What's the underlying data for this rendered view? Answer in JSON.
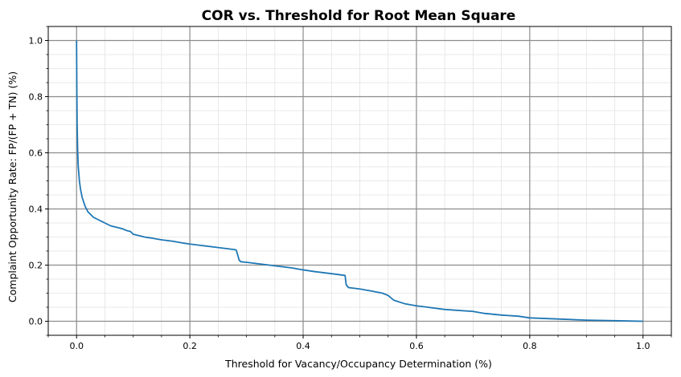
{
  "chart_data": {
    "type": "line",
    "title": "COR vs. Threshold for Root Mean Square",
    "xlabel": "Threshold for Vacancy/Occupancy Determination (%)",
    "ylabel": "Complaint Opportunity Rate: FP/(FP + TN) (%)",
    "xlim": [
      -0.05,
      1.05
    ],
    "ylim": [
      -0.05,
      1.05
    ],
    "x_ticks": [
      "0.0",
      "0.2",
      "0.4",
      "0.6",
      "0.8",
      "1.0"
    ],
    "y_ticks": [
      "0.0",
      "0.2",
      "0.4",
      "0.6",
      "0.8",
      "1.0"
    ],
    "x_tick_values": [
      0,
      0.2,
      0.4,
      0.6,
      0.8,
      1.0
    ],
    "y_tick_values": [
      0,
      0.2,
      0.4,
      0.6,
      0.8,
      1.0
    ],
    "grid": true,
    "minor_grid": true,
    "legend": "none",
    "series": [
      {
        "color": "#1f77b4",
        "x": [
          0.0,
          0.0005,
          0.001,
          0.002,
          0.003,
          0.005,
          0.007,
          0.01,
          0.015,
          0.02,
          0.025,
          0.03,
          0.04,
          0.05,
          0.06,
          0.07,
          0.08,
          0.09,
          0.095,
          0.1,
          0.11,
          0.12,
          0.13,
          0.15,
          0.17,
          0.19,
          0.2,
          0.22,
          0.24,
          0.26,
          0.28,
          0.282,
          0.285,
          0.287,
          0.29,
          0.3,
          0.32,
          0.34,
          0.36,
          0.38,
          0.4,
          0.42,
          0.44,
          0.46,
          0.474,
          0.476,
          0.48,
          0.5,
          0.52,
          0.54,
          0.55,
          0.56,
          0.58,
          0.6,
          0.62,
          0.65,
          0.7,
          0.72,
          0.75,
          0.78,
          0.8,
          0.85,
          0.9,
          0.95,
          1.0
        ],
        "y": [
          1.0,
          0.82,
          0.7,
          0.6,
          0.55,
          0.5,
          0.47,
          0.44,
          0.41,
          0.39,
          0.38,
          0.37,
          0.36,
          0.35,
          0.34,
          0.335,
          0.33,
          0.322,
          0.32,
          0.31,
          0.305,
          0.3,
          0.297,
          0.29,
          0.285,
          0.278,
          0.275,
          0.27,
          0.265,
          0.26,
          0.255,
          0.253,
          0.232,
          0.218,
          0.212,
          0.21,
          0.205,
          0.2,
          0.195,
          0.19,
          0.183,
          0.177,
          0.172,
          0.167,
          0.163,
          0.13,
          0.12,
          0.115,
          0.108,
          0.1,
          0.092,
          0.075,
          0.062,
          0.055,
          0.05,
          0.042,
          0.035,
          0.028,
          0.022,
          0.018,
          0.012,
          0.008,
          0.004,
          0.002,
          0.0
        ]
      }
    ]
  }
}
